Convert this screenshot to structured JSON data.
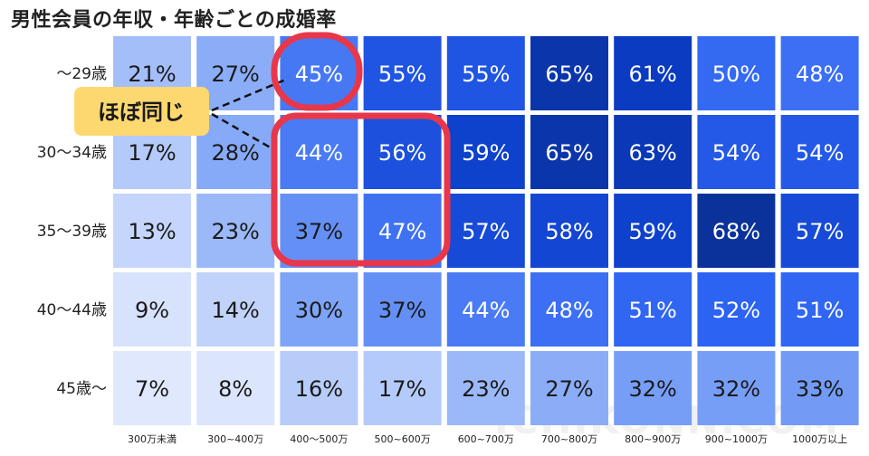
{
  "title": "男性会員の年収・年齢ごとの成婚率",
  "watermark": "ICHIKONN.COM",
  "callout": "ほぼ同じ",
  "chart_data": {
    "type": "heatmap",
    "title": "男性会員の年収・年齢ごとの成婚率",
    "x_categories": [
      "300万未満",
      "300~400万",
      "400～500万",
      "500~600万",
      "600~700万",
      "700~800万",
      "800~900万",
      "900~1000万",
      "1000万以上"
    ],
    "y_categories": [
      "～29歳",
      "30～34歳",
      "35～39歳",
      "40～44歳",
      "45歳～"
    ],
    "values": [
      [
        21,
        27,
        45,
        55,
        55,
        65,
        61,
        50,
        48
      ],
      [
        17,
        28,
        44,
        56,
        59,
        65,
        63,
        54,
        54
      ],
      [
        13,
        23,
        37,
        47,
        57,
        58,
        59,
        68,
        57
      ],
      [
        9,
        14,
        30,
        37,
        44,
        48,
        51,
        52,
        51
      ],
      [
        7,
        8,
        16,
        17,
        23,
        27,
        32,
        32,
        33
      ]
    ],
    "labels": [
      [
        "21%",
        "27%",
        "45%",
        "55%",
        "55%",
        "65%",
        "61%",
        "50%",
        "48%"
      ],
      [
        "17%",
        "28%",
        "44%",
        "56%",
        "59%",
        "65%",
        "63%",
        "54%",
        "54%"
      ],
      [
        "13%",
        "23%",
        "37%",
        "47%",
        "57%",
        "58%",
        "59%",
        "68%",
        "57%"
      ],
      [
        "9%",
        "14%",
        "30%",
        "37%",
        "44%",
        "48%",
        "51%",
        "52%",
        "51%"
      ],
      [
        "7%",
        "8%",
        "16%",
        "17%",
        "23%",
        "27%",
        "32%",
        "32%",
        "33%"
      ]
    ],
    "highlight_color": "#e8374a",
    "callout_color": "#fdd870",
    "color_scale": [
      "#ffffff",
      "#c9d8fb",
      "#7ea4f7",
      "#2d63f2",
      "#0a3cc7",
      "#0b2f8f"
    ]
  }
}
